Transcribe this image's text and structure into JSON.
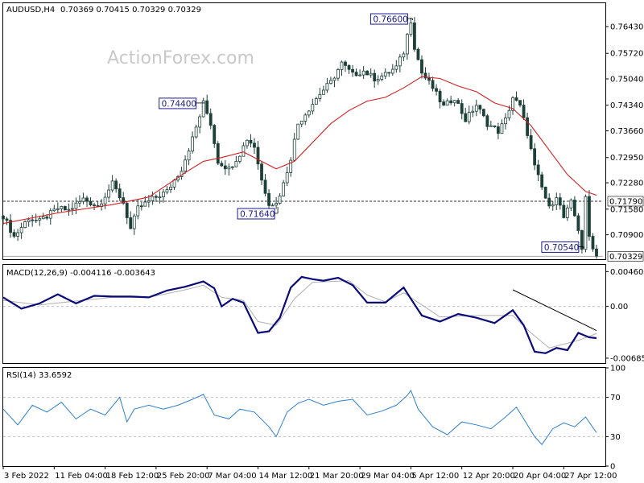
{
  "header": {
    "symbol_tf": "AUDUSD,H4",
    "ohlc": "0.70369 0.70415 0.70329 0.70329"
  },
  "watermark": "ActionForex.com",
  "colors": {
    "candle": "#1d4038",
    "ma": "#d42020",
    "macd": "#0a0a78",
    "signal": "#b0b0b0",
    "rsi": "#2d7fd0",
    "callout_border": "#1a1a8c",
    "grid": "#c0c0c0"
  },
  "chart_data": [
    {
      "type": "candlestick",
      "panel": "price",
      "y_ticks": [
        "0.76430",
        "0.75720",
        "0.75040",
        "0.74340",
        "0.73660",
        "0.72950",
        "0.72280",
        "0.71580",
        "0.70900"
      ],
      "ylim": [
        0.7025,
        0.7705
      ],
      "current_price": "0.70329",
      "horizontal_line": "0.71790",
      "moving_average_color": "red",
      "callouts": [
        {
          "label": "0.76600",
          "value": 0.766
        },
        {
          "label": "0.74400",
          "value": 0.744
        },
        {
          "label": "0.71640",
          "value": 0.7164
        },
        {
          "label": "0.70540",
          "value": 0.7054
        }
      ],
      "x_ticks": [
        "3 Feb 2022",
        "11 Feb 04:00",
        "18 Feb 12:00",
        "25 Feb 20:00",
        "7 Mar 04:00",
        "14 Mar 12:00",
        "21 Mar 20:00",
        "29 Mar 04:00",
        "5 Apr 12:00",
        "12 Apr 20:00",
        "20 Apr 04:00",
        "27 Apr 12:00"
      ],
      "close_path": [
        [
          0,
          0.714
        ],
        [
          3,
          0.7085
        ],
        [
          7,
          0.7135
        ],
        [
          10,
          0.7125
        ],
        [
          15,
          0.716
        ],
        [
          18,
          0.7155
        ],
        [
          22,
          0.7185
        ],
        [
          26,
          0.7165
        ],
        [
          30,
          0.7225
        ],
        [
          33,
          0.7175
        ],
        [
          35,
          0.7105
        ],
        [
          37,
          0.716
        ],
        [
          41,
          0.7185
        ],
        [
          45,
          0.7205
        ],
        [
          49,
          0.7265
        ],
        [
          52,
          0.7345
        ],
        [
          54,
          0.7405
        ],
        [
          55,
          0.744
        ],
        [
          57,
          0.7385
        ],
        [
          59,
          0.7285
        ],
        [
          62,
          0.7265
        ],
        [
          65,
          0.7305
        ],
        [
          67,
          0.7345
        ],
        [
          69,
          0.7325
        ],
        [
          71,
          0.7235
        ],
        [
          73,
          0.7175
        ],
        [
          75,
          0.7172
        ],
        [
          77,
          0.7225
        ],
        [
          79,
          0.7295
        ],
        [
          81,
          0.7385
        ],
        [
          84,
          0.7425
        ],
        [
          87,
          0.7465
        ],
        [
          90,
          0.7495
        ],
        [
          93,
          0.7545
        ],
        [
          96,
          0.7515
        ],
        [
          99,
          0.7525
        ],
        [
          102,
          0.7505
        ],
        [
          105,
          0.7515
        ],
        [
          108,
          0.7535
        ],
        [
          110,
          0.7575
        ],
        [
          111,
          0.762
        ],
        [
          112,
          0.766
        ],
        [
          113,
          0.759
        ],
        [
          115,
          0.752
        ],
        [
          118,
          0.748
        ],
        [
          121,
          0.743
        ],
        [
          124,
          0.7455
        ],
        [
          127,
          0.7395
        ],
        [
          130,
          0.7435
        ],
        [
          133,
          0.7385
        ],
        [
          136,
          0.7365
        ],
        [
          138,
          0.7395
        ],
        [
          140,
          0.7455
        ],
        [
          142,
          0.743
        ],
        [
          144,
          0.736
        ],
        [
          146,
          0.727
        ],
        [
          148,
          0.7215
        ],
        [
          150,
          0.716
        ],
        [
          152,
          0.7195
        ],
        [
          154,
          0.7135
        ],
        [
          156,
          0.7175
        ],
        [
          158,
          0.7105
        ],
        [
          159,
          0.7054
        ],
        [
          160,
          0.7185
        ],
        [
          161,
          0.7085
        ],
        [
          163,
          0.7033
        ]
      ],
      "ma_path": [
        [
          0,
          0.712
        ],
        [
          15,
          0.7148
        ],
        [
          30,
          0.717
        ],
        [
          40,
          0.719
        ],
        [
          50,
          0.7255
        ],
        [
          55,
          0.7285
        ],
        [
          60,
          0.7295
        ],
        [
          66,
          0.731
        ],
        [
          70,
          0.729
        ],
        [
          75,
          0.7265
        ],
        [
          80,
          0.7285
        ],
        [
          85,
          0.7335
        ],
        [
          90,
          0.7385
        ],
        [
          95,
          0.742
        ],
        [
          100,
          0.7445
        ],
        [
          105,
          0.7455
        ],
        [
          110,
          0.748
        ],
        [
          115,
          0.751
        ],
        [
          120,
          0.7505
        ],
        [
          125,
          0.7485
        ],
        [
          130,
          0.747
        ],
        [
          135,
          0.744
        ],
        [
          140,
          0.7425
        ],
        [
          145,
          0.738
        ],
        [
          150,
          0.7315
        ],
        [
          155,
          0.725
        ],
        [
          160,
          0.7205
        ],
        [
          163,
          0.7195
        ]
      ]
    },
    {
      "type": "line",
      "panel": "macd",
      "header": "MACD(12,26,9) -0.004116 -0.003643",
      "y_ticks": [
        "0.004608",
        "0.00",
        "-0.006853"
      ],
      "ylim": [
        -0.0075,
        0.0055
      ],
      "series": [
        {
          "name": "",
          "points": [
            [
              0,
              0.0012
            ],
            [
              5,
              -0.0003
            ],
            [
              10,
              0.0004
            ],
            [
              15,
              0.0016
            ],
            [
              20,
              0.0004
            ],
            [
              25,
              0.0014
            ],
            [
              30,
              0.0013
            ],
            [
              35,
              0.0013
            ],
            [
              40,
              0.0012
            ],
            [
              45,
              0.0021
            ],
            [
              50,
              0.0026
            ],
            [
              55,
              0.0033
            ],
            [
              58,
              0.0024
            ],
            [
              60,
              0.0
            ],
            [
              63,
              0.001
            ],
            [
              66,
              0.0005
            ],
            [
              70,
              -0.0035
            ],
            [
              73,
              -0.0033
            ],
            [
              76,
              -0.0015
            ],
            [
              79,
              0.0025
            ],
            [
              82,
              0.0039
            ],
            [
              85,
              0.0036
            ],
            [
              88,
              0.0034
            ],
            [
              92,
              0.0038
            ],
            [
              96,
              0.0028
            ],
            [
              100,
              0.0005
            ],
            [
              105,
              0.0005
            ],
            [
              110,
              0.0025
            ],
            [
              112,
              0.001
            ],
            [
              115,
              -0.0012
            ],
            [
              120,
              -0.002
            ],
            [
              125,
              -0.001
            ],
            [
              130,
              -0.0015
            ],
            [
              135,
              -0.0022
            ],
            [
              140,
              -0.0005
            ],
            [
              143,
              -0.0025
            ],
            [
              146,
              -0.006
            ],
            [
              149,
              -0.0062
            ],
            [
              152,
              -0.0055
            ],
            [
              155,
              -0.0058
            ],
            [
              158,
              -0.0035
            ],
            [
              161,
              -0.0041
            ],
            [
              163,
              -0.0042
            ]
          ]
        },
        {
          "name": "",
          "points": [
            [
              0,
              0.0008
            ],
            [
              10,
              0.0002
            ],
            [
              20,
              0.0007
            ],
            [
              30,
              0.0012
            ],
            [
              40,
              0.0012
            ],
            [
              50,
              0.0022
            ],
            [
              55,
              0.0028
            ],
            [
              60,
              0.0012
            ],
            [
              66,
              0.0008
            ],
            [
              70,
              -0.002
            ],
            [
              75,
              -0.0025
            ],
            [
              80,
              0.001
            ],
            [
              85,
              0.0032
            ],
            [
              95,
              0.0034
            ],
            [
              100,
              0.0015
            ],
            [
              105,
              0.0006
            ],
            [
              110,
              0.0018
            ],
            [
              115,
              0.0002
            ],
            [
              120,
              -0.0014
            ],
            [
              130,
              -0.0012
            ],
            [
              140,
              -0.0012
            ],
            [
              145,
              -0.0035
            ],
            [
              150,
              -0.0055
            ],
            [
              158,
              -0.0045
            ],
            [
              163,
              -0.0036
            ]
          ]
        }
      ],
      "trendline": [
        [
          140,
          0.0022
        ],
        [
          163,
          -0.0032
        ]
      ]
    },
    {
      "type": "line",
      "panel": "rsi",
      "header": "RSI(14) 33.6592",
      "y_ticks": [
        "100",
        "70",
        "30",
        "0"
      ],
      "ylim": [
        0,
        100
      ],
      "levels": [
        70,
        30
      ],
      "series": [
        {
          "name": "",
          "points": [
            [
              0,
              58
            ],
            [
              4,
              42
            ],
            [
              8,
              62
            ],
            [
              12,
              55
            ],
            [
              16,
              65
            ],
            [
              20,
              48
            ],
            [
              24,
              58
            ],
            [
              28,
              52
            ],
            [
              32,
              70
            ],
            [
              34,
              45
            ],
            [
              36,
              58
            ],
            [
              40,
              62
            ],
            [
              44,
              58
            ],
            [
              48,
              62
            ],
            [
              52,
              68
            ],
            [
              55,
              73
            ],
            [
              58,
              52
            ],
            [
              62,
              48
            ],
            [
              65,
              58
            ],
            [
              69,
              55
            ],
            [
              73,
              40
            ],
            [
              75,
              30
            ],
            [
              78,
              55
            ],
            [
              81,
              64
            ],
            [
              84,
              68
            ],
            [
              88,
              62
            ],
            [
              92,
              66
            ],
            [
              96,
              68
            ],
            [
              100,
              52
            ],
            [
              104,
              56
            ],
            [
              108,
              62
            ],
            [
              111,
              72
            ],
            [
              112,
              77
            ],
            [
              114,
              58
            ],
            [
              118,
              40
            ],
            [
              122,
              32
            ],
            [
              126,
              45
            ],
            [
              130,
              42
            ],
            [
              134,
              38
            ],
            [
              138,
              50
            ],
            [
              141,
              60
            ],
            [
              143,
              48
            ],
            [
              146,
              30
            ],
            [
              148,
              22
            ],
            [
              151,
              38
            ],
            [
              154,
              44
            ],
            [
              157,
              40
            ],
            [
              160,
              50
            ],
            [
              163,
              34
            ]
          ]
        }
      ]
    }
  ]
}
